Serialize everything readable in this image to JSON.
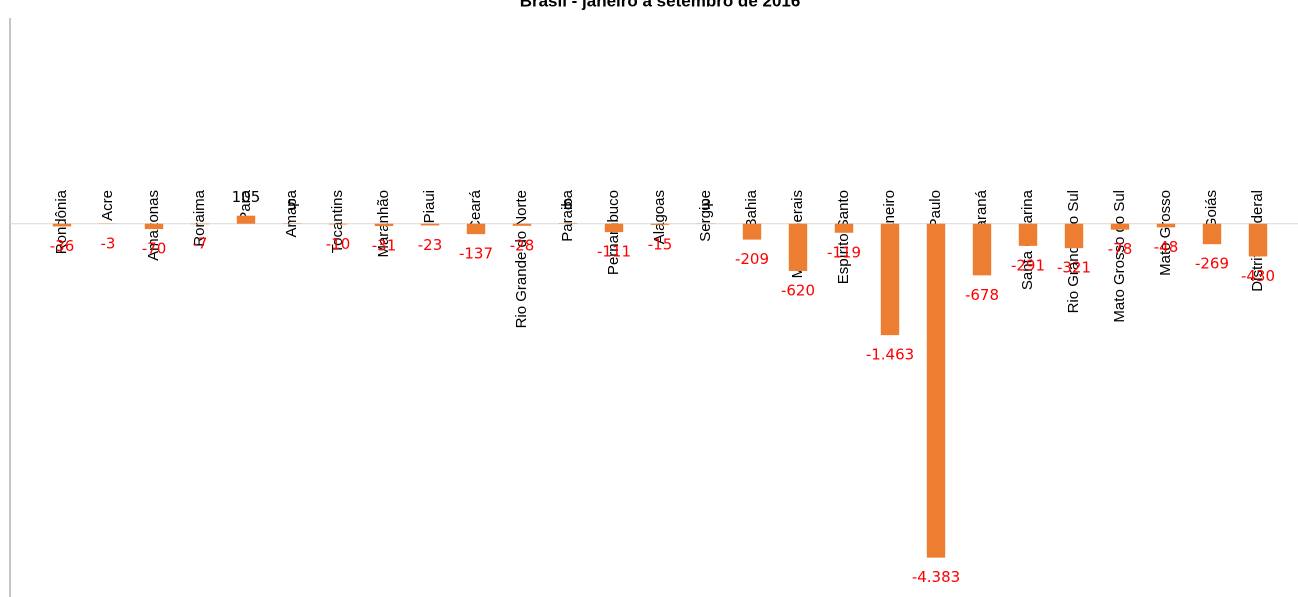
{
  "chart_data": {
    "type": "bar",
    "title": "Brasil - janeiro a setembro de 2016",
    "categories": [
      "Rondônia",
      "Acre",
      "Amazonas",
      "Roraima",
      "Para",
      "Amapa",
      "Tocantins",
      "Maranhão",
      "Piaui",
      "Ceará",
      "Rio Grande do Norte",
      "Paraiba",
      "Pernambuco",
      "Alagoas",
      "Sergipe",
      "Bahia",
      "Minas Gerais",
      "Espírito Santo",
      "Rio de Janeiro",
      "São Paulo",
      "Paraná",
      "Santa Catarina",
      "Rio Grande do Sul",
      "Mato Grosso do Sul",
      "Mato Grosso",
      "Goiás",
      "Distrito Federal"
    ],
    "values": [
      -36,
      -3,
      -70,
      -7,
      105,
      5,
      -10,
      -31,
      -23,
      -137,
      -28,
      6,
      -111,
      -15,
      3,
      -209,
      -620,
      -119,
      -1463,
      -4383,
      -678,
      -291,
      -321,
      -78,
      -48,
      -269,
      -430
    ],
    "value_labels": [
      "-36",
      "-3",
      "-70",
      "-7",
      "105",
      "5",
      "-10",
      "-31",
      "-23",
      "-137",
      "-28",
      "6",
      "-111",
      "-15",
      "3",
      "-209",
      "-620",
      "-119",
      "-1.463",
      "-4.383",
      "-678",
      "-291",
      "-321",
      "-78",
      "-48",
      "-269",
      "-430"
    ],
    "color": "#ed7d31",
    "ylim": [
      -4900,
      2700
    ]
  }
}
